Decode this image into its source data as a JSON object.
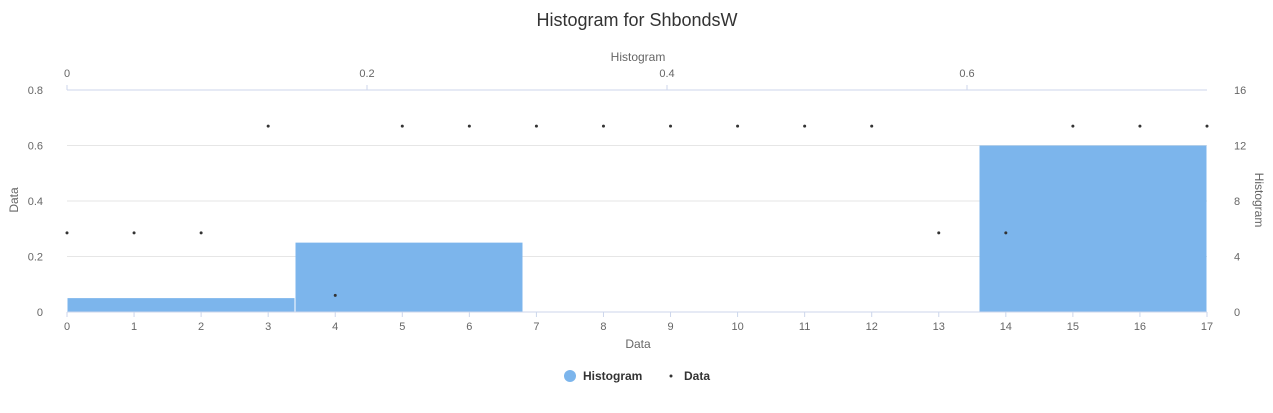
{
  "chart_data": {
    "type": "bar",
    "title": "Histogram for ShbondsW",
    "colors": {
      "histogram": "#7cb5ec",
      "data_points": "#333333",
      "grid": "#e6e6e6",
      "axis_line": "#ccd6eb"
    },
    "x_bottom": {
      "label": "Data",
      "min": 0,
      "max": 17,
      "ticks": [
        0,
        1,
        2,
        3,
        4,
        5,
        6,
        7,
        8,
        9,
        10,
        11,
        12,
        13,
        14,
        15,
        16,
        17
      ]
    },
    "x_top": {
      "label": "Histogram",
      "min": 0,
      "max": 0.76,
      "ticks": [
        0,
        0.2,
        0.4,
        0.6
      ],
      "tick_labels": [
        "0",
        "0.2",
        "0.4",
        "0.6"
      ]
    },
    "y_left": {
      "label": "Data",
      "min": 0,
      "max": 0.8,
      "ticks": [
        0,
        0.2,
        0.4,
        0.6,
        0.8
      ],
      "tick_labels": [
        "0",
        "0.2",
        "0.4",
        "0.6",
        "0.8"
      ]
    },
    "y_right": {
      "label": "Histogram",
      "min": 0,
      "max": 16,
      "ticks": [
        0,
        4,
        8,
        12,
        16
      ],
      "tick_labels": [
        "0",
        "4",
        "8",
        "12",
        "16"
      ]
    },
    "histogram": {
      "name": "Histogram",
      "bins": [
        {
          "x0": 0,
          "x1": 3.4,
          "value": 0.05
        },
        {
          "x0": 3.4,
          "x1": 6.8,
          "value": 0.25
        },
        {
          "x0": 6.8,
          "x1": 10.2,
          "value": 0
        },
        {
          "x0": 10.2,
          "x1": 13.6,
          "value": 0
        },
        {
          "x0": 13.6,
          "x1": 17,
          "value": 0.6
        }
      ]
    },
    "data_series": {
      "name": "Data",
      "points": [
        {
          "x": 0,
          "y": 5.7
        },
        {
          "x": 1,
          "y": 5.7
        },
        {
          "x": 2,
          "y": 5.7
        },
        {
          "x": 3,
          "y": 13.4
        },
        {
          "x": 4,
          "y": 1.2
        },
        {
          "x": 5,
          "y": 13.4
        },
        {
          "x": 6,
          "y": 13.4
        },
        {
          "x": 7,
          "y": 13.4
        },
        {
          "x": 8,
          "y": 13.4
        },
        {
          "x": 9,
          "y": 13.4
        },
        {
          "x": 10,
          "y": 13.4
        },
        {
          "x": 11,
          "y": 13.4
        },
        {
          "x": 12,
          "y": 13.4
        },
        {
          "x": 13,
          "y": 5.7
        },
        {
          "x": 14,
          "y": 5.7
        },
        {
          "x": 15,
          "y": 13.4
        },
        {
          "x": 16,
          "y": 13.4
        },
        {
          "x": 17,
          "y": 13.4
        }
      ]
    },
    "legend": {
      "position": "bottom-center",
      "items": [
        "Histogram",
        "Data"
      ]
    }
  }
}
